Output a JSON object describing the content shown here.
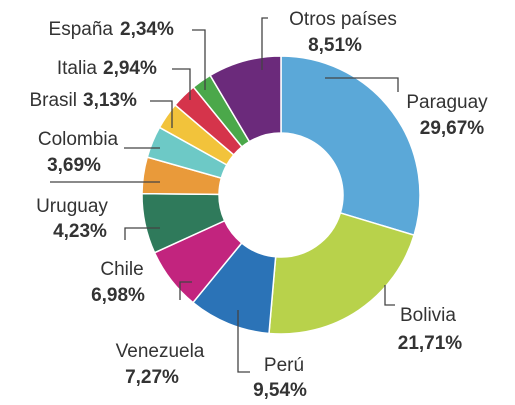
{
  "chart_data": {
    "type": "donut",
    "categories": [
      "Paraguay",
      "Bolivia",
      "Perú",
      "Venezuela",
      "Chile",
      "Uruguay",
      "Colombia",
      "Brasil",
      "Italia",
      "España",
      "Otros países"
    ],
    "values": [
      29.67,
      21.71,
      9.54,
      7.27,
      6.98,
      4.23,
      3.69,
      3.13,
      2.94,
      2.34,
      8.51
    ],
    "value_labels": [
      "29,67%",
      "21,71%",
      "9,54%",
      "7,27%",
      "6,98%",
      "4,23%",
      "3,69%",
      "3,13%",
      "2,94%",
      "2,34%",
      "8,51%"
    ],
    "colors": [
      "#5ba8d8",
      "#b8d24b",
      "#2b73b7",
      "#c2247e",
      "#2f7a5b",
      "#e99a3a",
      "#6dc9c6",
      "#f2c33b",
      "#d5344b",
      "#4ba84a",
      "#6b2a7b"
    ]
  }
}
